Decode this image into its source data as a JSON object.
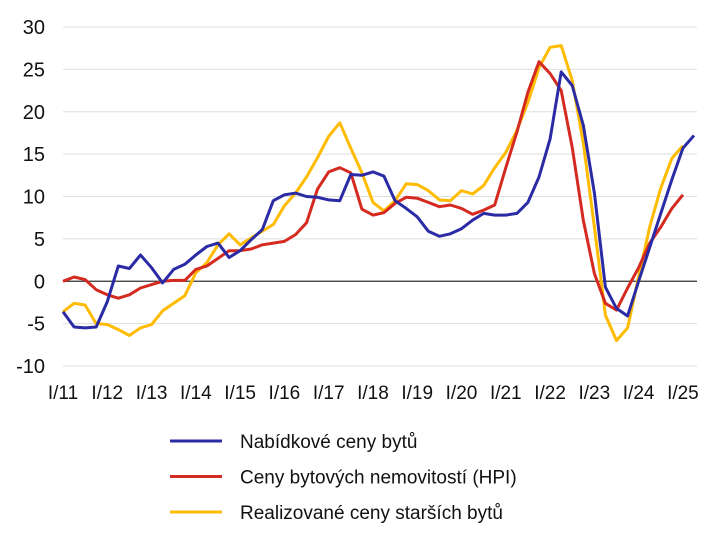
{
  "chart_data": {
    "type": "line",
    "title": "",
    "xlabel": "",
    "ylabel": "",
    "ylim": [
      -10,
      30
    ],
    "yticks": [
      -10,
      -5,
      0,
      5,
      10,
      15,
      20,
      25,
      30
    ],
    "x_tick_labels": [
      "I/11",
      "I/12",
      "I/13",
      "I/14",
      "I/15",
      "I/16",
      "I/17",
      "I/18",
      "I/19",
      "I/20",
      "I/21",
      "I/22",
      "I/23",
      "I/24",
      "I/25"
    ],
    "x_frequency": "quarterly, starting I/11",
    "grid": true,
    "legend_position": "bottom",
    "series": [
      {
        "name": "Nabídkové ceny bytů",
        "color": "#2b2ba6",
        "values": [
          -3.6,
          -5.4,
          -5.5,
          -5.4,
          -2.4,
          1.8,
          1.5,
          3.1,
          1.6,
          -0.2,
          1.4,
          2,
          3.1,
          4.1,
          4.5,
          2.8,
          3.6,
          4.9,
          6.1,
          9.5,
          10.2,
          10.4,
          10,
          9.9,
          9.6,
          9.5,
          12.6,
          12.5,
          12.9,
          12.4,
          9.5,
          8.6,
          7.6,
          5.9,
          5.3,
          5.6,
          6.2,
          7.2,
          8,
          7.8,
          7.8,
          8,
          9.3,
          12.3,
          16.8,
          24.7,
          23.1,
          18.4,
          10.4,
          -0.7,
          -3.2,
          -4.1,
          0,
          4,
          8,
          12,
          15.7,
          17.2
        ]
      },
      {
        "name": "Ceny bytových nemovitostí (HPI)",
        "color": "#d42a20",
        "values": [
          0,
          0.5,
          0.2,
          -1,
          -1.6,
          -2,
          -1.6,
          -0.8,
          -0.4,
          0,
          0.1,
          0.1,
          1.4,
          1.8,
          2.7,
          3.6,
          3.6,
          3.8,
          4.3,
          4.5,
          4.7,
          5.5,
          6.9,
          10.9,
          12.9,
          13.4,
          12.8,
          8.5,
          7.8,
          8.1,
          9.2,
          9.9,
          9.8,
          9.3,
          8.8,
          9,
          8.6,
          7.9,
          8.4,
          9,
          13.4,
          17.6,
          22.3,
          25.9,
          24.5,
          22.5,
          15.8,
          7.2,
          0.9,
          -2.6,
          -3.4,
          -0.8,
          1.6,
          4.5,
          6.4,
          8.6,
          10.2
        ]
      },
      {
        "name": "Realizované ceny starších bytů",
        "color": "#ffbb00",
        "values": [
          -3.6,
          -2.6,
          -2.8,
          -5,
          -5.1,
          -5.7,
          -6.4,
          -5.5,
          -5.1,
          -3.5,
          -2.6,
          -1.7,
          1,
          2.2,
          4.3,
          5.6,
          4.3,
          5.1,
          5.9,
          6.7,
          8.9,
          10.4,
          12.3,
          14.6,
          17.1,
          18.7,
          15.7,
          12.8,
          9.3,
          8.3,
          9.5,
          11.5,
          11.4,
          10.7,
          9.6,
          9.5,
          10.7,
          10.3,
          11.3,
          13.4,
          15.2,
          17.8,
          21.1,
          25.2,
          27.6,
          27.8,
          23.7,
          16.3,
          6.4,
          -4,
          -7,
          -5.5,
          0.5,
          6.4,
          11,
          14.5,
          16
        ]
      }
    ]
  }
}
